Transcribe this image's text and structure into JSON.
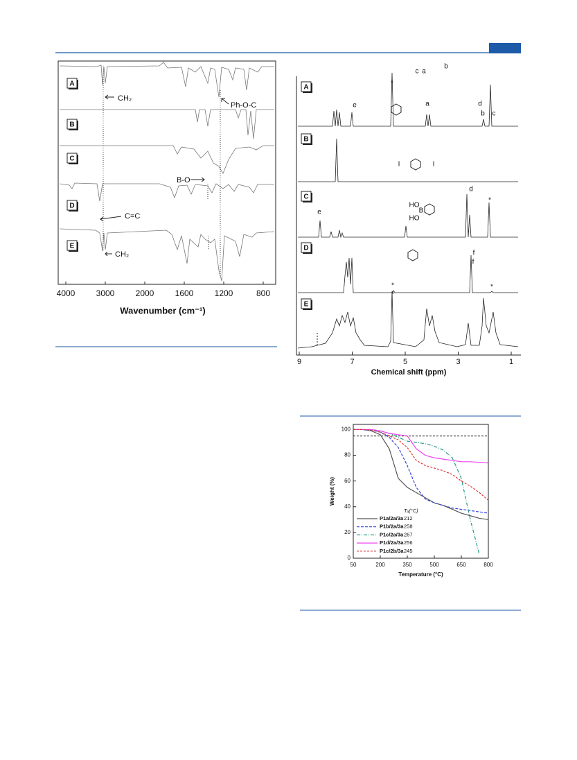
{
  "chart_data": [
    {
      "type": "spectrum",
      "xlabel": "Wavenumber (cm⁻¹)",
      "xlim": [
        4000,
        800
      ],
      "xticks": [
        4000,
        3000,
        2000,
        1600,
        1200,
        800
      ],
      "panels": [
        "A",
        "B",
        "C",
        "D",
        "E"
      ],
      "annotations": [
        "CH₂",
        "Ph-O-C",
        "B-O",
        "C=C",
        "CH₂"
      ]
    },
    {
      "type": "spectrum",
      "xlabel": "Chemical shift (ppm)",
      "xlim": [
        9.1,
        0.6
      ],
      "xticks": [
        9,
        7,
        5,
        3,
        1
      ],
      "panels": [
        "A",
        "B",
        "C",
        "D",
        "E"
      ],
      "annotations": [
        "a",
        "b",
        "c",
        "a",
        "b",
        "c",
        "*",
        "d",
        "e",
        "d",
        "e",
        "*",
        "f",
        "f",
        "*",
        "*",
        "*",
        "I",
        "I",
        "HO",
        "HO",
        "B"
      ]
    },
    {
      "type": "line",
      "xlabel": "Temperature (°C)",
      "ylabel": "Weight (%)",
      "legend_title": "Tₐ(°C)",
      "xlim": [
        50,
        800
      ],
      "xticks": [
        50,
        200,
        350,
        500,
        650,
        800
      ],
      "ylim": [
        0,
        104
      ],
      "yticks": [
        0,
        20,
        40,
        60,
        80,
        100
      ],
      "reference_line": 95,
      "x": [
        50,
        100,
        150,
        200,
        250,
        300,
        350,
        400,
        450,
        500,
        550,
        600,
        650,
        700,
        750,
        800
      ],
      "series": [
        {
          "name": "P1a/2a/3a",
          "td": "212",
          "color": "#555555",
          "dash": "none",
          "values": [
            100,
            100,
            99,
            96,
            85,
            62,
            55,
            51,
            47,
            43,
            41,
            38,
            35,
            33,
            31,
            30
          ]
        },
        {
          "name": "P1b/2a/3a",
          "td": "258",
          "color": "#3344dd",
          "dash": "4 2",
          "values": [
            100,
            100,
            99.5,
            98,
            94,
            86,
            72,
            55,
            46,
            43,
            41,
            39,
            38,
            37,
            36,
            35
          ]
        },
        {
          "name": "P1c/2a/3a",
          "td": "267",
          "color": "#229988",
          "dash": "5 2 1 2",
          "values": [
            100,
            100,
            100,
            99,
            97,
            94,
            91,
            90,
            89,
            87,
            84,
            78,
            62,
            30,
            3,
            null
          ]
        },
        {
          "name": "P1d/2a/3a",
          "td": "256",
          "color": "#ee44ee",
          "dash": "none",
          "values": [
            100,
            100,
            100,
            99,
            97,
            96,
            95,
            85,
            80,
            78,
            77,
            76,
            75,
            75,
            74.5,
            74
          ]
        },
        {
          "name": "P1c/2b/3a",
          "td": "245",
          "color": "#dd3333",
          "dash": "3 2",
          "values": [
            100,
            100,
            99.5,
            98,
            95,
            92,
            86,
            76,
            72,
            70,
            68,
            65,
            60,
            56,
            51,
            45
          ]
        }
      ]
    }
  ]
}
